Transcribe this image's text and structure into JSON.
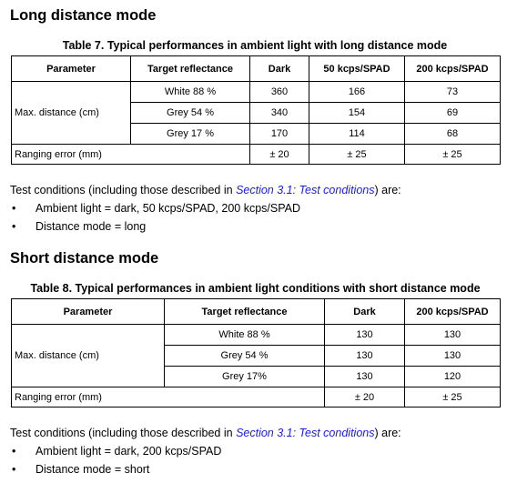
{
  "long": {
    "title": "Long distance mode",
    "caption": "Table 7. Typical performances in ambient light with long distance mode",
    "headers": [
      "Parameter",
      "Target reflectance",
      "Dark",
      "50 kcps/SPAD",
      "200 kcps/SPAD"
    ],
    "row_label_distance": "Max. distance (cm)",
    "rows": [
      [
        "White 88 %",
        "360",
        "166",
        "73"
      ],
      [
        "Grey 54 %",
        "340",
        "154",
        "69"
      ],
      [
        "Grey 17 %",
        "170",
        "114",
        "68"
      ]
    ],
    "error_label": "Ranging error (mm)",
    "error_values": [
      "± 20",
      "± 25",
      "± 25"
    ],
    "cond_prefix": "Test conditions (including those described in ",
    "cond_link": "Section 3.1: Test conditions",
    "cond_suffix": ") are:",
    "bullets": [
      "Ambient light = dark, 50 kcps/SPAD, 200 kcps/SPAD",
      "Distance mode = long"
    ]
  },
  "short": {
    "title": "Short distance mode",
    "caption": "Table 8. Typical performances in ambient light conditions with short distance mode",
    "headers": [
      "Parameter",
      "Target reflectance",
      "Dark",
      "200 kcps/SPAD"
    ],
    "row_label_distance": "Max. distance (cm)",
    "rows": [
      [
        "White 88 %",
        "130",
        "130"
      ],
      [
        "Grey 54 %",
        "130",
        "130"
      ],
      [
        "Grey 17%",
        "130",
        "120"
      ]
    ],
    "error_label": "Ranging error (mm)",
    "error_values": [
      "± 20",
      "± 25"
    ],
    "cond_prefix": "Test conditions (including those described in ",
    "cond_link": "Section 3.1: Test conditions",
    "cond_suffix": ") are:",
    "bullets": [
      "Ambient light = dark, 200 kcps/SPAD",
      "Distance mode = short"
    ]
  },
  "bullet_glyph": "•"
}
